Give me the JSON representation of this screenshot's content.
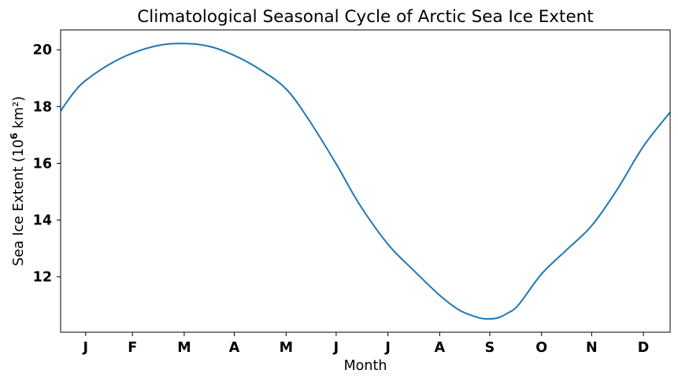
{
  "chart_data": {
    "type": "line",
    "title": "Climatological Seasonal Cycle of Arctic Sea Ice Extent",
    "xlabel": "Month",
    "ylabel": "Sea Ice Extent (10",
    "ylabel_exponent": "6",
    "ylabel_unit": " km²)",
    "xlim": [
      1,
      366
    ],
    "ylim": [
      10.05,
      20.7
    ],
    "x_ticks": [
      {
        "day": 16,
        "label": "J"
      },
      {
        "day": 44,
        "label": "F"
      },
      {
        "day": 75,
        "label": "M"
      },
      {
        "day": 105,
        "label": "A"
      },
      {
        "day": 136,
        "label": "M"
      },
      {
        "day": 166,
        "label": "J"
      },
      {
        "day": 197,
        "label": "J"
      },
      {
        "day": 228,
        "label": "A"
      },
      {
        "day": 258,
        "label": "S"
      },
      {
        "day": 289,
        "label": "O"
      },
      {
        "day": 319,
        "label": "N"
      },
      {
        "day": 350,
        "label": "D"
      }
    ],
    "y_ticks": [
      12,
      14,
      16,
      18,
      20
    ],
    "grid": false,
    "series": [
      {
        "color": "#1f77b4",
        "x": [
          1,
          9,
          16,
          30,
          44,
          60,
          75,
          90,
          105,
          120,
          136,
          150,
          166,
          180,
          197,
          212,
          228,
          240,
          252,
          258,
          263,
          268,
          275,
          289,
          304,
          319,
          334,
          350,
          366
        ],
        "y": [
          17.85,
          18.5,
          18.92,
          19.48,
          19.88,
          20.16,
          20.22,
          20.12,
          19.8,
          19.32,
          18.62,
          17.5,
          15.98,
          14.55,
          13.15,
          12.25,
          11.35,
          10.82,
          10.55,
          10.52,
          10.56,
          10.7,
          11.0,
          12.1,
          12.95,
          13.8,
          15.05,
          16.6,
          17.8
        ]
      }
    ]
  }
}
